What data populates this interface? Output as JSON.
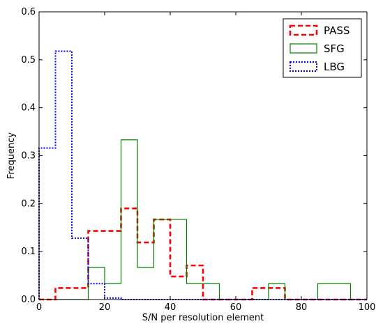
{
  "chart_data": {
    "type": "histogram",
    "title": "",
    "xlabel": "S/N per resolution element",
    "ylabel": "Frequency",
    "xlim": [
      0,
      100
    ],
    "ylim": [
      0,
      0.6
    ],
    "xticks": [
      0,
      20,
      40,
      60,
      80,
      100
    ],
    "yticks": [
      0.0,
      0.1,
      0.2,
      0.3,
      0.4,
      0.5,
      0.6
    ],
    "xtick_labels": [
      "0",
      "20",
      "40",
      "60",
      "80",
      "100"
    ],
    "ytick_labels": [
      "0.0",
      "0.1",
      "0.2",
      "0.3",
      "0.4",
      "0.5",
      "0.6"
    ],
    "grid": false,
    "legend_position": "top-right",
    "bin_edges": [
      0,
      5,
      10,
      15,
      20,
      25,
      30,
      35,
      40,
      45,
      50,
      55,
      60,
      65,
      70,
      75,
      80,
      85,
      90,
      95,
      100
    ],
    "series": [
      {
        "name": "PASS",
        "color": "#ff0000",
        "linestyle": "dashed",
        "values": [
          0,
          0.024,
          0.024,
          0.143,
          0.143,
          0.19,
          0.119,
          0.167,
          0.048,
          0.071,
          0,
          0,
          0,
          0.024,
          0.024,
          0,
          0,
          0,
          0,
          0
        ]
      },
      {
        "name": "SFG",
        "color": "#008000",
        "linestyle": "solid",
        "values": [
          0,
          0,
          0,
          0.067,
          0.033,
          0.333,
          0.067,
          0.167,
          0.167,
          0.033,
          0.033,
          0,
          0,
          0,
          0.033,
          0,
          0,
          0.033,
          0.033,
          0
        ]
      },
      {
        "name": "LBG",
        "color": "#0000ff",
        "linestyle": "dotted",
        "values": [
          0.316,
          0.518,
          0.128,
          0.033,
          0.003,
          0,
          0,
          0,
          0,
          0,
          0,
          0,
          0,
          0,
          0,
          0,
          0,
          0,
          0,
          0
        ]
      }
    ]
  }
}
